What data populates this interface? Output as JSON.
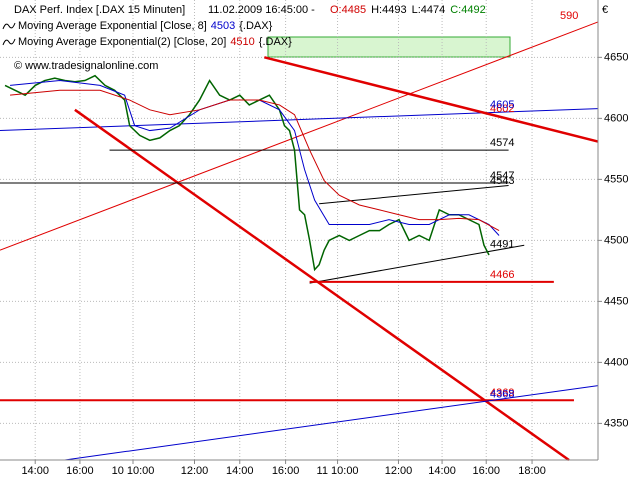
{
  "chart_data": {
    "type": "line",
    "title": "DAX Perf. Index [.DAX  15 Minuten]",
    "timestamp": "11.02.2009 16:45:00 -",
    "ohlc": [
      {
        "text": "O:4485",
        "color": "#d00000"
      },
      {
        "text": "H:4493",
        "color": "#000000"
      },
      {
        "text": "L:4474",
        "color": "#000000"
      },
      {
        "text": "C:4492",
        "color": "#008000"
      }
    ],
    "clipped_label": "590",
    "currency": "€",
    "watermark": "© www.tradesignalonline.com",
    "xlim": [
      0,
      107
    ],
    "ylim": [
      4320,
      4697
    ],
    "yticks": [
      4650,
      4600,
      4550,
      4500,
      4450,
      4400,
      4350
    ],
    "xticks": [
      {
        "value": 6.3,
        "label": "14:00"
      },
      {
        "value": 14.3,
        "label": "16:00"
      },
      {
        "value": 23.8,
        "label": "10 10:00"
      },
      {
        "value": 34.8,
        "label": "12:00"
      },
      {
        "value": 42.9,
        "label": "14:00"
      },
      {
        "value": 51.1,
        "label": "16:00"
      },
      {
        "value": 60.4,
        "label": "11 10:00"
      },
      {
        "value": 71.3,
        "label": "12:00"
      },
      {
        "value": 79.1,
        "label": "14:00"
      },
      {
        "value": 87,
        "label": "16:00"
      },
      {
        "value": 95.2,
        "label": "18:00"
      }
    ],
    "grid": true,
    "series": [
      {
        "name": "DAX Perf. Index",
        "color": "#006400",
        "x": [
          0.9,
          2.7,
          4.5,
          6.3,
          8,
          9.8,
          11.6,
          13.4,
          15.2,
          17,
          18.8,
          20.5,
          22.3,
          23.2,
          25,
          26.8,
          28.6,
          30.4,
          32.1,
          33.9,
          35.7,
          37.5,
          39.3,
          41.1,
          42.9,
          44.6,
          46.4,
          48.2,
          50,
          50.9,
          51.8,
          52.7,
          53.6,
          54.5,
          55.4,
          56.3,
          57.1,
          58,
          58.9,
          60.7,
          62.5,
          64.3,
          66.1,
          67.9,
          69.6,
          71.4,
          73.2,
          75,
          76.8,
          78.6,
          80.4,
          82.1,
          83.9,
          85.7,
          86.6,
          87.5
        ],
        "values": [
          4627,
          4623,
          4619,
          4627,
          4631,
          4633,
          4631,
          4630,
          4631,
          4635,
          4627,
          4623,
          4615,
          4594,
          4586,
          4582,
          4584,
          4590,
          4594,
          4603,
          4615,
          4631,
          4619,
          4615,
          4619,
          4611,
          4615,
          4619,
          4607,
          4594,
          4590,
          4574,
          4525,
          4521,
          4500,
          4476,
          4480,
          4492,
          4500,
          4504,
          4500,
          4504,
          4508,
          4508,
          4513,
          4517,
          4500,
          4504,
          4500,
          4525,
          4521,
          4521,
          4517,
          4513,
          4496,
          4488
        ]
      },
      {
        "name": "Moving Average Exponential [Close, 8]",
        "last_value": "4503",
        "symbol": "{.DAX}",
        "color": "#0000cc",
        "x": [
          1.8,
          10.7,
          17.9,
          22.3,
          24.1,
          26.8,
          30.4,
          35.7,
          41.1,
          46.4,
          50,
          52.7,
          54.5,
          56.3,
          58.9,
          62.5,
          66.1,
          69.6,
          73.2,
          76.8,
          80.4,
          83.9,
          87.5,
          89.3
        ],
        "values": [
          4627,
          4631,
          4627,
          4619,
          4594,
          4590,
          4592,
          4607,
          4615,
          4615,
          4607,
          4590,
          4558,
          4533,
          4513,
          4513,
          4513,
          4517,
          4513,
          4513,
          4521,
          4521,
          4513,
          4504
        ]
      },
      {
        "name": "Moving Average Exponential(2) [Close, 20]",
        "last_value": "4510",
        "symbol": "{.DAX}",
        "color": "#cc0000",
        "x": [
          1.8,
          10.7,
          17.9,
          23.2,
          26.8,
          30.4,
          35.7,
          41.1,
          46.4,
          50,
          52.7,
          55.4,
          58,
          60.7,
          64.3,
          67.9,
          71.4,
          75,
          78.6,
          82.1,
          85.7,
          89.3
        ],
        "values": [
          4619,
          4623,
          4623,
          4615,
          4607,
          4603,
          4607,
          4615,
          4615,
          4611,
          4603,
          4574,
          4549,
          4537,
          4529,
          4525,
          4521,
          4517,
          4517,
          4518,
          4517,
          4508
        ]
      }
    ],
    "drawn_lines": [
      {
        "color": "#e00000",
        "width": 1,
        "x": [
          0,
          107
        ],
        "y": [
          4492,
          4679
        ]
      },
      {
        "color": "#0000cc",
        "width": 1,
        "x": [
          0,
          107
        ],
        "y": [
          4590,
          4608
        ]
      },
      {
        "color": "#e00000",
        "width": 2.5,
        "x": [
          47.3,
          107
        ],
        "y": [
          4650,
          4581
        ]
      },
      {
        "color": "#e00000",
        "width": 2.5,
        "x": [
          13.4,
          101.8
        ],
        "y": [
          4607,
          4320
        ]
      },
      {
        "color": "#000000",
        "width": 1,
        "x": [
          0,
          91
        ],
        "y": [
          4547,
          4547
        ]
      },
      {
        "color": "#000000",
        "width": 1,
        "x": [
          19.6,
          91
        ],
        "y": [
          4574,
          4574
        ]
      },
      {
        "color": "#000000",
        "width": 1,
        "x": [
          57.1,
          91
        ],
        "y": [
          4530,
          4545
        ]
      },
      {
        "color": "#000000",
        "width": 1,
        "x": [
          55.4,
          93.8
        ],
        "y": [
          4465,
          4496
        ]
      },
      {
        "color": "#e00000",
        "width": 2,
        "x": [
          55.4,
          99.1
        ],
        "y": [
          4466,
          4466
        ]
      },
      {
        "color": "#e00000",
        "width": 2,
        "x": [
          0,
          102.7
        ],
        "y": [
          4369,
          4369
        ]
      },
      {
        "color": "#0000cc",
        "width": 1,
        "x": [
          11.6,
          107
        ],
        "y": [
          4320,
          4381
        ]
      }
    ],
    "price_labels": [
      {
        "value": 4602,
        "color": "#e00000"
      },
      {
        "value": 4605,
        "color": "#0000cc"
      },
      {
        "value": 4574,
        "color": "#000000"
      },
      {
        "value": 4547,
        "color": "#000000"
      },
      {
        "value": 4543,
        "color": "#000000"
      },
      {
        "value": 4491,
        "color": "#000000"
      },
      {
        "value": 4466,
        "color": "#e00000"
      },
      {
        "value": 4369,
        "color": "#e00000"
      },
      {
        "value": 4368,
        "color": "#0000cc"
      }
    ]
  }
}
